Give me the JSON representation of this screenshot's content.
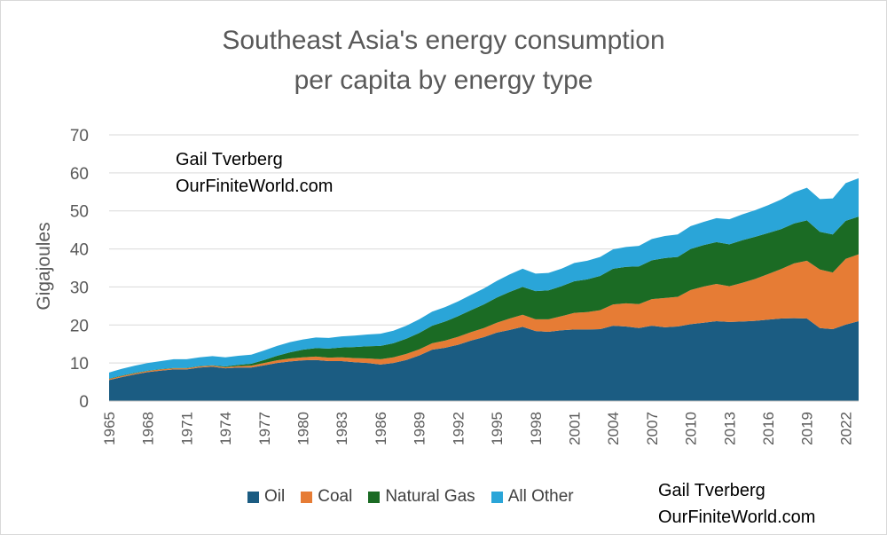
{
  "chart_data": {
    "type": "area",
    "stacked": true,
    "title": "Southeast Asia's energy consumption per capita by energy type",
    "title_lines": [
      "Southeast Asia's energy consumption",
      "per capita by energy type"
    ],
    "xlabel": "",
    "ylabel": "Gigajoules",
    "ylim": [
      0,
      70
    ],
    "yticks": [
      0,
      10,
      20,
      30,
      40,
      50,
      60,
      70
    ],
    "xticks": [
      "1965",
      "1968",
      "1971",
      "1974",
      "1977",
      "1980",
      "1983",
      "1986",
      "1989",
      "1992",
      "1995",
      "1998",
      "2001",
      "2004",
      "2007",
      "2010",
      "2013",
      "2016",
      "2019",
      "2022"
    ],
    "grid": true,
    "legend_position": "bottom",
    "x": [
      1965,
      1966,
      1967,
      1968,
      1969,
      1970,
      1971,
      1972,
      1973,
      1974,
      1975,
      1976,
      1977,
      1978,
      1979,
      1980,
      1981,
      1982,
      1983,
      1984,
      1985,
      1986,
      1987,
      1988,
      1989,
      1990,
      1991,
      1992,
      1993,
      1994,
      1995,
      1996,
      1997,
      1998,
      1999,
      2000,
      2001,
      2002,
      2003,
      2004,
      2005,
      2006,
      2007,
      2008,
      2009,
      2010,
      2011,
      2012,
      2013,
      2014,
      2015,
      2016,
      2017,
      2018,
      2019,
      2020,
      2021,
      2022,
      2023
    ],
    "series": [
      {
        "name": "Oil",
        "color": "#1b5c82",
        "values": [
          5.5,
          6.3,
          7.0,
          7.6,
          8.0,
          8.3,
          8.3,
          8.8,
          9.0,
          8.6,
          8.8,
          8.8,
          9.4,
          10.0,
          10.4,
          10.7,
          10.8,
          10.5,
          10.5,
          10.2,
          10.0,
          9.6,
          10.0,
          10.8,
          12.0,
          13.5,
          14.0,
          14.8,
          15.9,
          16.8,
          18.0,
          18.7,
          19.5,
          18.4,
          18.2,
          18.6,
          18.8,
          18.8,
          18.9,
          19.8,
          19.6,
          19.2,
          19.8,
          19.4,
          19.6,
          20.2,
          20.6,
          21.0,
          20.8,
          20.9,
          21.1,
          21.4,
          21.7,
          21.8,
          21.7,
          19.2,
          18.9,
          20.1,
          21.0
        ]
      },
      {
        "name": "Coal",
        "color": "#e67c35",
        "values": [
          0.3,
          0.3,
          0.3,
          0.3,
          0.3,
          0.3,
          0.3,
          0.3,
          0.3,
          0.3,
          0.4,
          0.5,
          0.6,
          0.7,
          0.8,
          0.8,
          0.9,
          0.9,
          1.0,
          1.1,
          1.2,
          1.4,
          1.5,
          1.6,
          1.6,
          1.7,
          1.9,
          2.1,
          2.2,
          2.4,
          2.6,
          3.0,
          3.2,
          3.1,
          3.3,
          3.7,
          4.4,
          4.6,
          5.0,
          5.6,
          6.1,
          6.3,
          7.0,
          7.7,
          7.8,
          9.0,
          9.5,
          9.8,
          9.4,
          10.2,
          11.0,
          12.0,
          13.0,
          14.4,
          15.2,
          15.4,
          14.9,
          17.3,
          17.6
        ]
      },
      {
        "name": "Natural Gas",
        "color": "#1b6b24",
        "values": [
          0.1,
          0.1,
          0.1,
          0.1,
          0.1,
          0.1,
          0.1,
          0.1,
          0.1,
          0.2,
          0.3,
          0.5,
          0.8,
          1.2,
          1.6,
          2.0,
          2.2,
          2.4,
          2.6,
          2.9,
          3.2,
          3.5,
          3.7,
          4.0,
          4.3,
          4.6,
          5.0,
          5.4,
          5.8,
          6.2,
          6.6,
          7.0,
          7.3,
          7.4,
          7.6,
          7.9,
          8.3,
          8.6,
          9.0,
          9.4,
          9.6,
          9.9,
          10.2,
          10.5,
          10.5,
          10.8,
          10.9,
          11.0,
          11.0,
          11.2,
          11.1,
          10.8,
          10.5,
          10.5,
          10.6,
          9.9,
          10.0,
          10.0,
          9.9
        ]
      },
      {
        "name": "All Other",
        "color": "#2aa5d8",
        "values": [
          1.6,
          1.8,
          1.9,
          2.0,
          2.1,
          2.3,
          2.3,
          2.3,
          2.4,
          2.4,
          2.4,
          2.4,
          2.5,
          2.6,
          2.7,
          2.7,
          2.8,
          2.8,
          2.9,
          3.0,
          3.1,
          3.2,
          3.3,
          3.4,
          3.6,
          3.7,
          3.8,
          3.9,
          4.0,
          4.2,
          4.4,
          4.6,
          4.8,
          4.6,
          4.6,
          4.6,
          4.8,
          4.9,
          5.0,
          5.1,
          5.2,
          5.4,
          5.6,
          5.8,
          5.9,
          6.0,
          6.1,
          6.3,
          6.6,
          6.8,
          7.0,
          7.3,
          7.8,
          8.2,
          8.6,
          8.6,
          9.5,
          9.9,
          10.1
        ]
      }
    ]
  },
  "watermark": {
    "line1": "Gail Tverberg",
    "line2": "OurFiniteWorld.com"
  }
}
